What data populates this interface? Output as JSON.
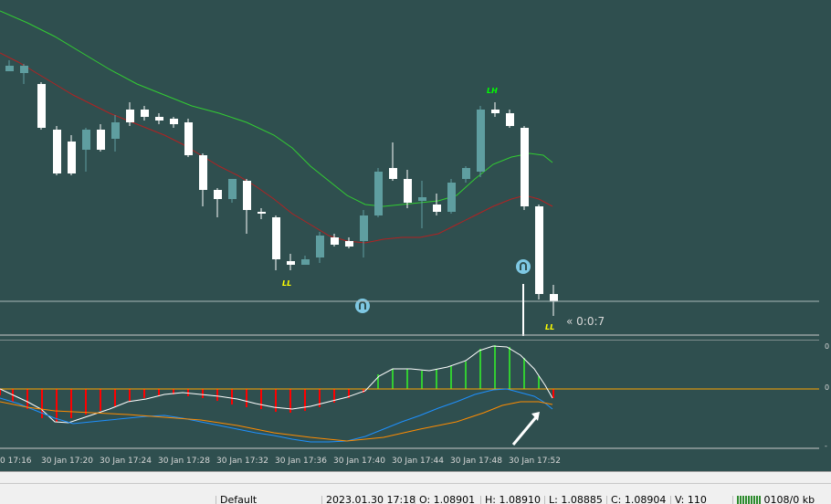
{
  "chart": {
    "countdown": "« 0:0:7",
    "markers": [
      {
        "label": "LL",
        "color": "#ffff00"
      },
      {
        "label": "LH",
        "color": "#00ff00"
      },
      {
        "label": "LL",
        "color": "#ffff00"
      }
    ],
    "time_labels": [
      "0 17:16",
      "30 Jan 17:20",
      "30 Jan 17:24",
      "30 Jan 17:28",
      "30 Jan 17:32",
      "30 Jan 17:36",
      "30 Jan 17:40",
      "30 Jan 17:44",
      "30 Jan 17:48",
      "30 Jan 17:52"
    ],
    "sub_scale_labels": [
      "0",
      "0",
      "-"
    ],
    "colors": {
      "background": "#2f4f4f",
      "bull_candle": "#5f9ea0",
      "bear_candle": "#ffffff",
      "ma_fast": "#32cd32",
      "ma_slow": "#b22222",
      "hist_up": "#32cd32",
      "hist_down": "#ff0000",
      "zero_line": "#ffa500",
      "signal_blue": "#1e90ff",
      "signal_orange": "#ff8c00",
      "arrow": "#ffffff"
    }
  },
  "status_bar": {
    "profile": "Default",
    "datetime": "2023.01.30 17:18",
    "open": "O: 1.08901",
    "high": "H: 1.08910",
    "low": "L: 1.08885",
    "close": "C: 1.08904",
    "volume": "V: 110",
    "traffic": "0108/0 kb"
  }
}
